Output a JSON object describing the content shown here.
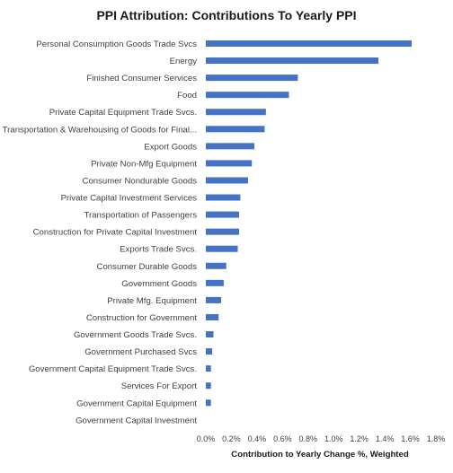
{
  "chart_data": {
    "type": "bar",
    "orientation": "horizontal",
    "title": "PPI Attribution: Contributions To Yearly PPI",
    "xlabel": "Contribution to Yearly Change %, Weighted",
    "ylabel": "",
    "xlim": [
      0,
      1.8
    ],
    "x_ticks": [
      "0.0%",
      "0.2%",
      "0.4%",
      "0.6%",
      "0.8%",
      "1.0%",
      "1.2%",
      "1.4%",
      "1.6%",
      "1.8%"
    ],
    "grid": false,
    "legend": "none",
    "bar_color": "#4472C4",
    "categories": [
      "Personal Consumption Goods Trade Svcs",
      "Energy",
      "Finished Consumer Services",
      "Food",
      "Private Capital Equipment Trade Svcs.",
      "Transportation & Warehousing of Goods for Final...",
      "Export Goods",
      "Private Non-Mfg Equipment",
      "Consumer Nondurable Goods",
      "Private Capital Investment Services",
      "Transportation of Passengers",
      "Construction for Private Capital Investment",
      "Exports Trade Svcs.",
      "Consumer Durable Goods",
      "Government Goods",
      "Private Mfg. Equipment",
      "Construction for Government",
      "Government Goods Trade Svcs.",
      "Government Purchased Svcs",
      "Government Capital Equipment Trade Svcs.",
      "Services For Export",
      "Government Capital Equipment",
      "Government Capital Investment"
    ],
    "values": [
      1.61,
      1.35,
      0.72,
      0.65,
      0.47,
      0.46,
      0.38,
      0.36,
      0.33,
      0.27,
      0.26,
      0.26,
      0.25,
      0.16,
      0.14,
      0.12,
      0.1,
      0.06,
      0.05,
      0.04,
      0.04,
      0.04,
      0.0
    ]
  }
}
